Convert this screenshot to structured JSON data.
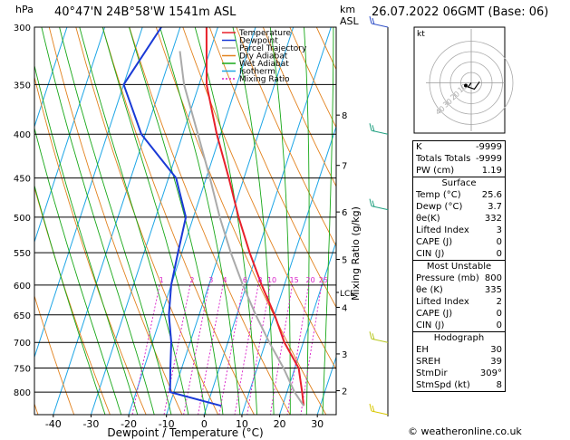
{
  "header": {
    "pressure_unit": "hPa",
    "location": "40°47'N  24B°58'W  1541m  ASL",
    "height_unit_km": "km",
    "height_unit_asl": "ASL",
    "datetime": "26.07.2022  06GMT  (Base: 06)"
  },
  "chart_data": {
    "type": "line",
    "title": "",
    "xlabel": "Dewpoint / Temperature (°C)",
    "ylabel": "hPa",
    "mixing_ratio_axis_label": "Mixing Ratio (g/kg)",
    "xlim": [
      -45,
      35
    ],
    "x_ticks": [
      "-40",
      "-30",
      "-20",
      "-10",
      "0",
      "10",
      "20",
      "30"
    ],
    "pressure_levels": [
      "300",
      "350",
      "400",
      "450",
      "500",
      "550",
      "600",
      "650",
      "700",
      "750",
      "800"
    ],
    "km_ticks": [
      {
        "km": "8",
        "p": 380
      },
      {
        "km": "7",
        "p": 435
      },
      {
        "km": "6",
        "p": 493
      },
      {
        "km": "5",
        "p": 560
      },
      {
        "km": "4",
        "p": 637
      },
      {
        "km": "3",
        "p": 722
      },
      {
        "km": "2",
        "p": 797
      }
    ],
    "lcl_label": "LCL",
    "lcl_pressure": 612,
    "mixing_ratio_labels": [
      "1",
      "2",
      "3",
      "4",
      "6",
      "8",
      "10",
      "15",
      "20",
      "25"
    ],
    "legend": [
      "Temperature",
      "Dewpoint",
      "Parcel Trajectory",
      "Dry Adiabat",
      "Wet Adiabat",
      "Isotherm",
      "Mixing Ratio"
    ],
    "colors": {
      "temperature": "#e8202a",
      "dewpoint": "#1a3ad6",
      "parcel": "#aaaaaa",
      "dry_adiabat": "#e2821e",
      "wet_adiabat": "#18a818",
      "isotherm": "#1ea6e6",
      "mixing_ratio": "#d81ec8"
    },
    "series": [
      {
        "name": "Temperature",
        "points": [
          [
            300,
            -33
          ],
          [
            350,
            -28
          ],
          [
            400,
            -21
          ],
          [
            450,
            -14
          ],
          [
            500,
            -8
          ],
          [
            550,
            -2
          ],
          [
            600,
            4
          ],
          [
            650,
            10
          ],
          [
            700,
            15
          ],
          [
            750,
            21
          ],
          [
            800,
            24
          ],
          [
            830,
            25.6
          ]
        ]
      },
      {
        "name": "Dewpoint",
        "points": [
          [
            300,
            -45
          ],
          [
            350,
            -50
          ],
          [
            400,
            -41
          ],
          [
            450,
            -28
          ],
          [
            500,
            -22
          ],
          [
            550,
            -21
          ],
          [
            600,
            -20
          ],
          [
            650,
            -18
          ],
          [
            700,
            -15
          ],
          [
            750,
            -13
          ],
          [
            800,
            -11
          ],
          [
            830,
            3.7
          ]
        ]
      },
      {
        "name": "Parcel Trajectory",
        "points": [
          [
            320,
            -38
          ],
          [
            350,
            -34
          ],
          [
            400,
            -26
          ],
          [
            450,
            -19
          ],
          [
            500,
            -13
          ],
          [
            550,
            -7
          ],
          [
            600,
            -1
          ],
          [
            650,
            5
          ],
          [
            700,
            11
          ],
          [
            750,
            17
          ],
          [
            800,
            22
          ],
          [
            830,
            25.6
          ]
        ]
      }
    ]
  },
  "hodograph": {
    "label": "kt",
    "ring_labels": [
      "10",
      "20",
      "30",
      "40"
    ],
    "wind_points": [
      [
        0,
        0
      ],
      [
        -3,
        -4
      ],
      [
        3,
        -6
      ],
      [
        8,
        1
      ]
    ]
  },
  "wind_barbs_color": "#20a080",
  "table": {
    "indices": [
      {
        "label": "K",
        "value": "-9999"
      },
      {
        "label": "Totals Totals",
        "value": "-9999"
      },
      {
        "label": "PW (cm)",
        "value": "1.19"
      }
    ],
    "surface_title": "Surface",
    "surface": [
      {
        "label": "Temp (°C)",
        "value": "25.6"
      },
      {
        "label": "Dewp (°C)",
        "value": "3.7"
      },
      {
        "label": "θe(K)",
        "value": "332"
      },
      {
        "label": "Lifted Index",
        "value": "3"
      },
      {
        "label": "CAPE (J)",
        "value": "0"
      },
      {
        "label": "CIN (J)",
        "value": "0"
      }
    ],
    "unstable_title": "Most Unstable",
    "unstable": [
      {
        "label": "Pressure (mb)",
        "value": "800"
      },
      {
        "label": "θe (K)",
        "value": "335"
      },
      {
        "label": "Lifted Index",
        "value": "2"
      },
      {
        "label": "CAPE (J)",
        "value": "0"
      },
      {
        "label": "CIN (J)",
        "value": "0"
      }
    ],
    "hodograph_title": "Hodograph",
    "hodo": [
      {
        "label": "EH",
        "value": "30"
      },
      {
        "label": "SREH",
        "value": "39"
      },
      {
        "label": "StmDir",
        "value": "309°"
      },
      {
        "label": "StmSpd (kt)",
        "value": "8"
      }
    ]
  },
  "credit": "© weatheronline.co.uk"
}
